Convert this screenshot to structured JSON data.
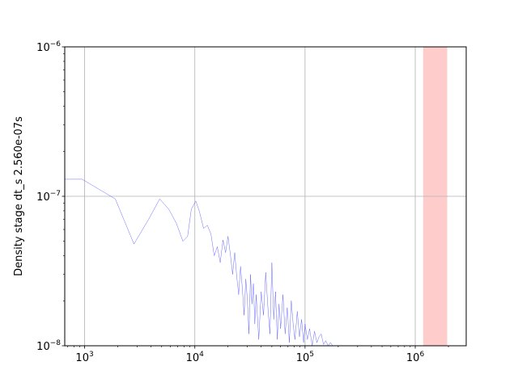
{
  "chart_data": {
    "type": "line",
    "title": "",
    "xlabel": "",
    "ylabel": "Density stage dt_s 2.560e-07s",
    "x_scale": "log",
    "y_scale": "log",
    "xlim": [
      660,
      2900000
    ],
    "ylim": [
      1e-08,
      1e-06
    ],
    "grid": true,
    "x_ticks": [
      {
        "value": 1000,
        "base": "10",
        "exp": "3"
      },
      {
        "value": 10000,
        "base": "10",
        "exp": "4"
      },
      {
        "value": 100000,
        "base": "10",
        "exp": "5"
      },
      {
        "value": 1000000,
        "base": "10",
        "exp": "6"
      }
    ],
    "y_ticks": [
      {
        "value": 1e-08,
        "base": "10",
        "exp": "−8"
      },
      {
        "value": 1e-07,
        "base": "10",
        "exp": "−7"
      },
      {
        "value": 1e-06,
        "base": "10",
        "exp": "−6"
      }
    ],
    "highlight_band": {
      "x_start": 1180000,
      "x_end": 1950000,
      "color": "#ff9999"
    },
    "series": [
      {
        "color": "#3b3bff",
        "x": [
          660,
          950,
          1900,
          2800,
          3800,
          4800,
          5800,
          6800,
          7800,
          8600,
          9300,
          10200,
          11000,
          12000,
          13000,
          14000,
          15000,
          16000,
          17000,
          18000,
          19000,
          20000,
          21000,
          22000,
          23000,
          24000,
          25000,
          26000,
          27000,
          28000,
          29000,
          30000,
          31000,
          32000,
          33000,
          34000,
          35000,
          36000,
          38000,
          40000,
          42000,
          44000,
          46000,
          48000,
          50000,
          52000,
          54000,
          56000,
          58000,
          60000,
          63000,
          66000,
          69000,
          72000,
          75000,
          78000,
          81000,
          85000,
          89000,
          93000,
          97000,
          100000,
          105000,
          110000,
          116000,
          122000,
          128000,
          134000,
          140000,
          147000,
          154000,
          162000,
          170000,
          178000
        ],
        "y": [
          1.3e-07,
          1.3e-07,
          9.6e-08,
          4.8e-08,
          7e-08,
          9.6e-08,
          8.2e-08,
          6.6e-08,
          5e-08,
          5.4e-08,
          8.2e-08,
          9.3e-08,
          7.9e-08,
          6.1e-08,
          6.4e-08,
          5.6e-08,
          4e-08,
          4.6e-08,
          3.6e-08,
          5.1e-08,
          4.2e-08,
          5.4e-08,
          4.1e-08,
          3e-08,
          4.2e-08,
          2.9e-08,
          2.2e-08,
          3.4e-08,
          2.4e-08,
          1.6e-08,
          2.8e-08,
          2e-08,
          1.2e-08,
          3e-08,
          1.9e-08,
          2.6e-08,
          1.4e-08,
          2.2e-08,
          1.1e-08,
          2.3e-08,
          1.6e-08,
          3.1e-08,
          1.8e-08,
          1.2e-08,
          3.6e-08,
          1.5e-08,
          2.3e-08,
          1.1e-08,
          1.9e-08,
          1.3e-08,
          2.2e-08,
          1.2e-08,
          1.8e-08,
          1.05e-08,
          2e-08,
          1.4e-08,
          1.1e-08,
          1.7e-08,
          1.15e-08,
          1.5e-08,
          1.05e-08,
          1.4e-08,
          1.1e-08,
          1.3e-08,
          1e-08,
          1.25e-08,
          1.05e-08,
          1.15e-08,
          1.2e-08,
          1.02e-08,
          1.08e-08,
          1e-08,
          1.05e-08,
          1e-08
        ]
      }
    ]
  }
}
